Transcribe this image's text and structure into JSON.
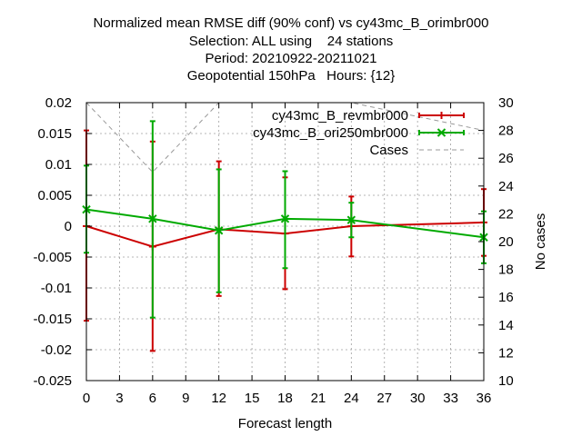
{
  "titles": [
    "Normalized mean RMSE diff (90% conf) vs cy43mc_B_orimbr000",
    "Selection: ALL using    24 stations",
    "Period: 20210922-20211021",
    "Geopotential 150hPa   Hours: {12}"
  ],
  "chart_data": {
    "type": "line",
    "xlabel": "Forecast length",
    "ylabel": "",
    "y2label": "No cases",
    "xlim": [
      0,
      36
    ],
    "ylim": [
      -0.025,
      0.02
    ],
    "y2lim": [
      10,
      30
    ],
    "xticks": [
      "0",
      "3",
      "6",
      "9",
      "12",
      "15",
      "18",
      "21",
      "24",
      "27",
      "30",
      "33",
      "36"
    ],
    "yticks": [
      "-0.025",
      "-0.02",
      "-0.015",
      "-0.01",
      "-0.005",
      "0",
      "0.005",
      "0.01",
      "0.015",
      "0.02"
    ],
    "y2ticks": [
      "10",
      "12",
      "14",
      "16",
      "18",
      "20",
      "22",
      "24",
      "26",
      "28",
      "30"
    ],
    "grid": true,
    "legend_position": "top-right",
    "series": [
      {
        "name": "cy43mc_B_revmbr000",
        "color": "#cc0000",
        "marker": "plus",
        "x": [
          0,
          6,
          12,
          18,
          24,
          36
        ],
        "y": [
          0.0,
          -0.0033,
          -0.0005,
          -0.0012,
          0.0,
          0.0006
        ],
        "err_low": [
          -0.0153,
          -0.0202,
          -0.0113,
          -0.0102,
          -0.0049,
          -0.0048
        ],
        "err_high": [
          0.0155,
          0.0137,
          0.0105,
          0.0079,
          0.0048,
          0.006
        ]
      },
      {
        "name": "cy43mc_B_ori250mbr000",
        "color": "#00aa00",
        "marker": "cross",
        "x": [
          0,
          6,
          12,
          18,
          24,
          36
        ],
        "y": [
          0.0027,
          0.0012,
          -0.0007,
          0.0012,
          0.001,
          -0.0018
        ],
        "err_low": [
          -0.0043,
          -0.0148,
          -0.0107,
          -0.0068,
          -0.0018,
          -0.006
        ],
        "err_high": [
          0.0098,
          0.017,
          0.0092,
          0.0089,
          0.0038,
          0.0024
        ]
      },
      {
        "name": "Cases",
        "color": "#999999",
        "axis": "y2",
        "dashed": true,
        "x": [
          0,
          6,
          12,
          18,
          24,
          36
        ],
        "y": [
          30,
          25,
          30,
          30,
          30,
          28
        ]
      }
    ]
  }
}
